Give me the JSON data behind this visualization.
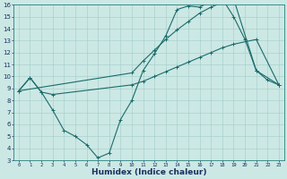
{
  "xlabel": "Humidex (Indice chaleur)",
  "bg_color": "#cce8e4",
  "line_color": "#1a6b6b",
  "xlim": [
    -0.5,
    23.5
  ],
  "ylim": [
    3,
    16
  ],
  "xticks": [
    0,
    1,
    2,
    3,
    4,
    5,
    6,
    7,
    8,
    9,
    10,
    11,
    12,
    13,
    14,
    15,
    16,
    17,
    18,
    19,
    20,
    21,
    22,
    23
  ],
  "yticks": [
    3,
    4,
    5,
    6,
    7,
    8,
    9,
    10,
    11,
    12,
    13,
    14,
    15,
    16
  ],
  "line1_x": [
    0,
    1,
    2,
    3,
    4,
    5,
    6,
    7,
    8,
    9,
    10,
    11,
    12,
    13,
    14,
    15,
    16,
    17,
    18,
    19,
    20,
    21,
    22,
    23
  ],
  "line1_y": [
    8.8,
    9.9,
    8.7,
    7.2,
    5.5,
    5.0,
    4.3,
    3.2,
    3.6,
    6.4,
    8.0,
    10.5,
    11.9,
    13.4,
    15.6,
    15.9,
    15.8,
    16.3,
    16.5,
    15.0,
    13.1,
    10.5,
    9.7,
    9.3
  ],
  "line2_x": [
    0,
    1,
    2,
    3,
    10,
    11,
    12,
    13,
    14,
    15,
    16,
    17,
    18,
    19,
    21,
    23
  ],
  "line2_y": [
    8.8,
    9.9,
    8.7,
    8.5,
    9.3,
    9.6,
    10.0,
    10.4,
    10.8,
    11.2,
    11.6,
    12.0,
    12.4,
    12.7,
    13.1,
    9.3
  ],
  "line3_x": [
    0,
    10,
    11,
    12,
    13,
    14,
    15,
    16,
    17,
    18,
    19,
    21,
    23
  ],
  "line3_y": [
    8.8,
    10.3,
    11.3,
    12.2,
    13.1,
    13.9,
    14.6,
    15.3,
    15.8,
    16.2,
    16.5,
    10.5,
    9.3
  ]
}
